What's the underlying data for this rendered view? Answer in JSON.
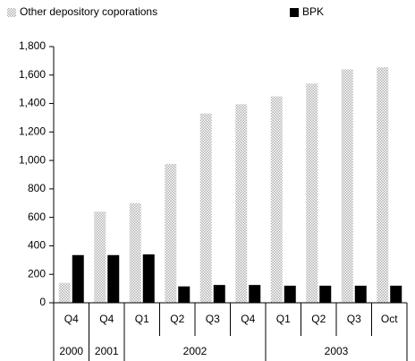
{
  "chart_data": {
    "type": "bar",
    "categories": [
      "Q4",
      "Q4",
      "Q1",
      "Q2",
      "Q3",
      "Q4",
      "Q1",
      "Q2",
      "Q3",
      "Oct"
    ],
    "groups": [
      {
        "label": "2000",
        "count": 1
      },
      {
        "label": "2001",
        "count": 1
      },
      {
        "label": "2002",
        "count": 4
      },
      {
        "label": "2003",
        "count": 4
      }
    ],
    "series": [
      {
        "name": "Other depository coporations",
        "color": "#b0b0b0",
        "pattern": "dots",
        "values": [
          140,
          640,
          700,
          975,
          1330,
          1395,
          1450,
          1540,
          1640,
          1655
        ]
      },
      {
        "name": "BPK",
        "color": "#000000",
        "values": [
          335,
          335,
          340,
          115,
          125,
          125,
          120,
          120,
          120,
          120
        ]
      }
    ],
    "ylim": [
      0,
      1800
    ],
    "yticks": [
      0,
      200,
      400,
      600,
      800,
      {
        "value": 1000,
        "label": "1,000"
      },
      {
        "value": 1200,
        "label": "1,200"
      },
      {
        "value": 1400,
        "label": "1,400"
      },
      {
        "value": 1600,
        "label": "1,600"
      },
      {
        "value": 1800,
        "label": "1,800"
      }
    ],
    "grid": false
  }
}
